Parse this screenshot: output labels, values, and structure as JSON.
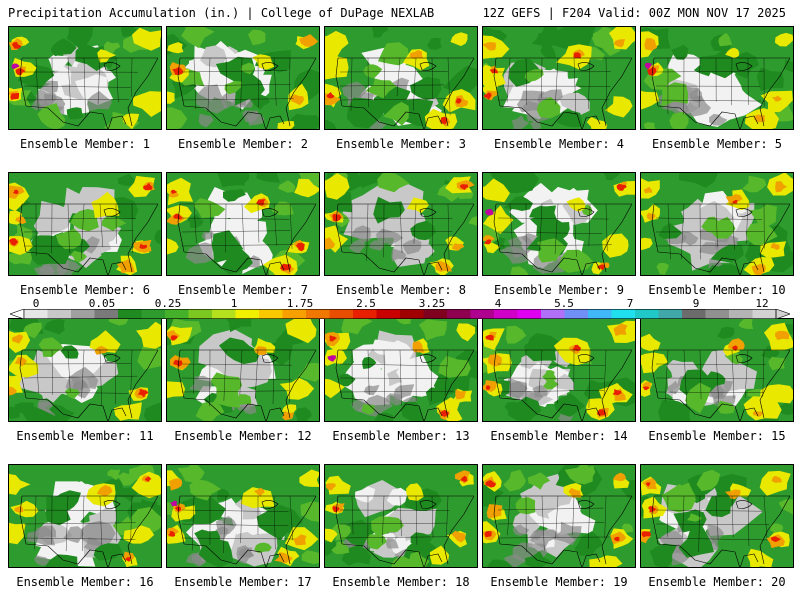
{
  "header": {
    "title_left": "Precipitation Accumulation (in.) | College of DuPage NEXLAB",
    "title_right": "12Z GEFS | F204 Valid: 00Z MON NOV 17 2025"
  },
  "members": [
    {
      "label": "Ensemble Member: 1"
    },
    {
      "label": "Ensemble Member: 2"
    },
    {
      "label": "Ensemble Member: 3"
    },
    {
      "label": "Ensemble Member: 4"
    },
    {
      "label": "Ensemble Member: 5"
    },
    {
      "label": "Ensemble Member: 6"
    },
    {
      "label": "Ensemble Member: 7"
    },
    {
      "label": "Ensemble Member: 8"
    },
    {
      "label": "Ensemble Member: 9"
    },
    {
      "label": "Ensemble Member: 10"
    },
    {
      "label": "Ensemble Member: 11"
    },
    {
      "label": "Ensemble Member: 12"
    },
    {
      "label": "Ensemble Member: 13"
    },
    {
      "label": "Ensemble Member: 14"
    },
    {
      "label": "Ensemble Member: 15"
    },
    {
      "label": "Ensemble Member: 16"
    },
    {
      "label": "Ensemble Member: 17"
    },
    {
      "label": "Ensemble Member: 18"
    },
    {
      "label": "Ensemble Member: 19"
    },
    {
      "label": "Ensemble Member: 20"
    }
  ],
  "colorbar": {
    "tick_labels": [
      "0",
      "0.05",
      "0.25",
      "1",
      "1.75",
      "2.5",
      "3.25",
      "4",
      "5.5",
      "7",
      "9",
      "12"
    ],
    "colors": [
      "#e6e6e6",
      "#c8c8c8",
      "#a0a0a0",
      "#7a7a7a",
      "#1f8a1f",
      "#2e9b2e",
      "#45b02a",
      "#7cc820",
      "#b4e01e",
      "#f0f000",
      "#f8c800",
      "#f8a000",
      "#f07800",
      "#e84e00",
      "#e82000",
      "#c80000",
      "#a00000",
      "#800020",
      "#900050",
      "#b00090",
      "#d000c8",
      "#e000f0",
      "#b070f8",
      "#7090f8",
      "#40b8f8",
      "#20e0f0",
      "#20c8c8",
      "#40a8a8",
      "#6c6c6c",
      "#909090",
      "#b4b4b4",
      "#d2d2d2"
    ]
  },
  "map_colors": {
    "ocean": "#ffffff",
    "white_trace": "#f2f2f2",
    "gray_light": "#c8c8c8",
    "gray_dark": "#8a8a8a",
    "green_dark": "#1f8a1f",
    "green": "#2e9b2e",
    "green_light": "#56b82a",
    "yellow": "#e8e800",
    "orange": "#f0a000",
    "red": "#e82000",
    "magenta": "#c000a0",
    "borders": "#000000"
  }
}
